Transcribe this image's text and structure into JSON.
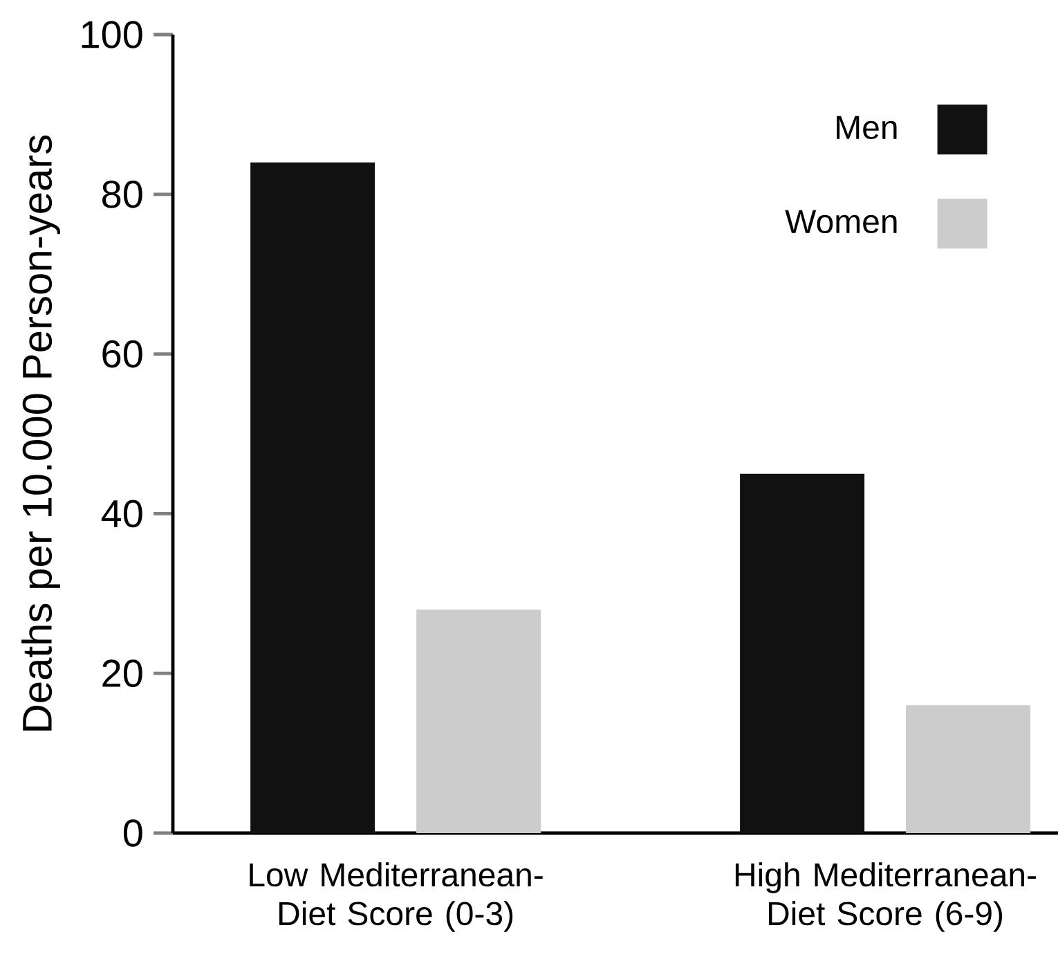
{
  "chart_data": {
    "type": "bar",
    "ylabel": "Deaths per 10.000 Person-years",
    "categories": [
      "Low Mediterranean-Diet Score (0-3)",
      "High Mediterranean-Diet Score (6-9)"
    ],
    "series": [
      {
        "name": "Men",
        "color": "#111111",
        "values": [
          84,
          45
        ]
      },
      {
        "name": "Women",
        "color": "#cccccc",
        "values": [
          28,
          16
        ]
      }
    ],
    "ylim": [
      0,
      100
    ],
    "yticks": [
      0,
      20,
      40,
      60,
      80,
      100
    ],
    "legend": "top right",
    "grid": false
  }
}
